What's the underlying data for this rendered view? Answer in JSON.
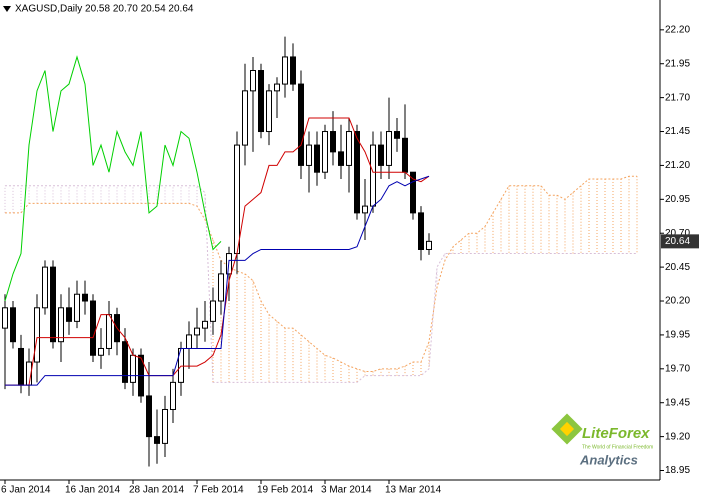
{
  "chart_data": {
    "type": "candlestick",
    "title": "XAGUSD,Daily  20.58 20.70 20.54 20.64",
    "price_label": {
      "value": 20.64,
      "label": "20.64"
    },
    "ylim": [
      18.88,
      22.42
    ],
    "yticks": [
      {
        "value": 22.2,
        "label": "22.20"
      },
      {
        "value": 21.95,
        "label": "21.95"
      },
      {
        "value": 21.7,
        "label": "21.70"
      },
      {
        "value": 21.45,
        "label": "21.45"
      },
      {
        "value": 21.2,
        "label": "21.20"
      },
      {
        "value": 20.95,
        "label": "20.95"
      },
      {
        "value": 20.7,
        "label": "20.70"
      },
      {
        "value": 20.45,
        "label": "20.45"
      },
      {
        "value": 20.2,
        "label": "20.20"
      },
      {
        "value": 19.95,
        "label": "19.95"
      },
      {
        "value": 19.7,
        "label": "19.70"
      },
      {
        "value": 19.45,
        "label": "19.45"
      },
      {
        "value": 19.2,
        "label": "19.20"
      },
      {
        "value": 18.95,
        "label": "18.95"
      }
    ],
    "grid": false,
    "up_color": "#ffffff",
    "down_color": "#000000",
    "categories": [
      "6 Jan 2014",
      null,
      null,
      null,
      null,
      null,
      null,
      null,
      "16 Jan 2014",
      null,
      null,
      null,
      null,
      null,
      null,
      null,
      "28 Jan 2014",
      null,
      null,
      null,
      null,
      null,
      null,
      null,
      "7 Feb 2014",
      null,
      null,
      null,
      null,
      null,
      null,
      null,
      "19 Feb 2014",
      null,
      null,
      null,
      null,
      null,
      null,
      null,
      "3 Mar 2014",
      null,
      null,
      null,
      null,
      null,
      null,
      null,
      "13 Mar 2014",
      null,
      null,
      null,
      null,
      null,
      null,
      null,
      null,
      null,
      null,
      null,
      null,
      null,
      null,
      null,
      null,
      null,
      null,
      null,
      null,
      null,
      null,
      null,
      null,
      null,
      null,
      null,
      null,
      null,
      null,
      null
    ],
    "open": [
      20.0,
      20.15,
      19.85,
      19.58,
      19.75,
      20.15,
      20.45,
      19.9,
      20.15,
      20.05,
      20.25,
      20.2,
      19.8,
      19.85,
      20.1,
      19.9,
      19.6,
      19.8,
      19.5,
      19.2,
      19.15,
      19.4,
      19.6,
      19.85,
      19.95,
      20.0,
      20.05,
      20.2,
      20.4,
      20.55,
      21.35,
      21.75,
      21.9,
      21.45,
      21.75,
      21.8,
      22.0,
      21.8,
      21.2,
      21.35,
      21.15,
      21.45,
      21.3,
      21.2,
      21.45,
      20.85,
      20.9,
      21.35,
      21.2,
      21.45,
      21.4,
      21.15,
      20.85,
      20.58,
      null,
      null,
      null,
      null,
      null,
      null,
      null,
      null,
      null,
      null,
      null,
      null,
      null,
      null,
      null,
      null,
      null,
      null,
      null,
      null,
      null,
      null,
      null,
      null,
      null,
      null
    ],
    "high": [
      20.25,
      20.2,
      19.95,
      19.85,
      20.25,
      20.5,
      20.5,
      20.25,
      20.3,
      20.35,
      20.35,
      20.25,
      20.0,
      20.2,
      20.15,
      20.0,
      19.85,
      19.85,
      19.75,
      19.4,
      19.5,
      19.7,
      19.9,
      20.05,
      20.15,
      20.2,
      20.3,
      20.5,
      20.6,
      21.45,
      21.95,
      22.0,
      21.95,
      21.8,
      21.85,
      22.15,
      22.1,
      21.9,
      21.45,
      21.45,
      21.5,
      21.6,
      21.5,
      21.55,
      21.5,
      21.1,
      21.45,
      21.45,
      21.7,
      21.55,
      21.65,
      21.15,
      20.9,
      20.7,
      null,
      null,
      null,
      null,
      null,
      null,
      null,
      null,
      null,
      null,
      null,
      null,
      null,
      null,
      null,
      null,
      null,
      null,
      null,
      null,
      null,
      null,
      null,
      null,
      null,
      null
    ],
    "low": [
      19.55,
      19.85,
      19.52,
      19.5,
      19.6,
      20.1,
      19.85,
      19.75,
      19.95,
      20.0,
      20.1,
      19.75,
      19.7,
      19.8,
      19.8,
      19.55,
      19.5,
      19.45,
      18.98,
      19.0,
      19.05,
      19.3,
      19.5,
      19.7,
      19.85,
      19.9,
      19.95,
      20.1,
      20.2,
      20.4,
      21.2,
      21.3,
      21.4,
      21.35,
      21.55,
      21.7,
      21.75,
      21.1,
      21.0,
      21.05,
      21.1,
      21.2,
      21.1,
      21.0,
      20.8,
      20.65,
      20.85,
      21.1,
      21.1,
      21.3,
      21.1,
      20.8,
      20.5,
      20.54,
      null,
      null,
      null,
      null,
      null,
      null,
      null,
      null,
      null,
      null,
      null,
      null,
      null,
      null,
      null,
      null,
      null,
      null,
      null,
      null,
      null,
      null,
      null,
      null,
      null,
      null
    ],
    "close": [
      20.15,
      19.9,
      19.58,
      19.75,
      20.15,
      20.45,
      19.9,
      20.15,
      20.05,
      20.25,
      20.2,
      19.8,
      19.85,
      20.1,
      19.9,
      19.6,
      19.8,
      19.5,
      19.2,
      19.15,
      19.4,
      19.6,
      19.85,
      19.95,
      20.0,
      20.05,
      20.2,
      20.4,
      20.55,
      21.35,
      21.75,
      21.9,
      21.45,
      21.75,
      21.8,
      22.0,
      21.8,
      21.2,
      21.35,
      21.15,
      21.45,
      21.3,
      21.2,
      21.45,
      20.85,
      20.9,
      21.35,
      21.2,
      21.45,
      21.4,
      21.15,
      20.85,
      20.58,
      20.64,
      null,
      null,
      null,
      null,
      null,
      null,
      null,
      null,
      null,
      null,
      null,
      null,
      null,
      null,
      null,
      null,
      null,
      null,
      null,
      null,
      null,
      null,
      null,
      null,
      null,
      null
    ],
    "lines": [
      {
        "color": "#d00000",
        "values": [
          19.58,
          19.58,
          19.58,
          19.58,
          19.93,
          19.93,
          19.93,
          19.93,
          19.93,
          19.93,
          19.93,
          19.93,
          20.1,
          20.1,
          20.0,
          19.93,
          19.8,
          19.78,
          19.65,
          19.65,
          19.65,
          19.65,
          19.72,
          19.72,
          19.72,
          19.75,
          19.8,
          19.95,
          20.35,
          20.55,
          20.9,
          20.95,
          21.0,
          21.2,
          21.2,
          21.3,
          21.3,
          21.35,
          21.55,
          21.55,
          21.55,
          21.55,
          21.55,
          21.55,
          21.4,
          21.3,
          21.15,
          21.15,
          21.15,
          21.15,
          21.15,
          21.1,
          21.08,
          21.12,
          null,
          null,
          null,
          null,
          null,
          null,
          null,
          null,
          null,
          null,
          null,
          null,
          null,
          null,
          null,
          null,
          null,
          null,
          null,
          null,
          null,
          null,
          null,
          null,
          null,
          null
        ]
      },
      {
        "color": "#0000b0",
        "values": [
          19.58,
          19.58,
          19.58,
          19.58,
          19.58,
          19.65,
          19.65,
          19.65,
          19.65,
          19.65,
          19.65,
          19.65,
          19.65,
          19.65,
          19.65,
          19.65,
          19.65,
          19.65,
          19.65,
          19.65,
          19.65,
          19.65,
          19.85,
          19.85,
          19.85,
          19.85,
          19.85,
          19.85,
          20.5,
          20.5,
          20.5,
          20.55,
          20.58,
          20.58,
          20.58,
          20.58,
          20.58,
          20.58,
          20.58,
          20.58,
          20.58,
          20.58,
          20.58,
          20.58,
          20.6,
          20.75,
          20.9,
          20.95,
          21.05,
          21.08,
          21.05,
          21.08,
          21.1,
          21.12,
          null,
          null,
          null,
          null,
          null,
          null,
          null,
          null,
          null,
          null,
          null,
          null,
          null,
          null,
          null,
          null,
          null,
          null,
          null,
          null,
          null,
          null,
          null,
          null,
          null,
          null
        ]
      },
      {
        "color": "#00d000",
        "values": [
          20.2,
          20.4,
          20.55,
          21.35,
          21.75,
          21.9,
          21.45,
          21.75,
          21.8,
          22.0,
          21.8,
          21.2,
          21.35,
          21.15,
          21.45,
          21.3,
          21.2,
          21.45,
          20.85,
          20.9,
          21.35,
          21.2,
          21.45,
          21.4,
          21.15,
          20.85,
          20.58,
          20.64,
          null,
          null,
          null,
          null,
          null,
          null,
          null,
          null,
          null,
          null,
          null,
          null,
          null,
          null,
          null,
          null,
          null,
          null,
          null,
          null,
          null,
          null,
          null,
          null,
          null,
          null,
          null,
          null,
          null,
          null,
          null,
          null,
          null,
          null,
          null,
          null,
          null,
          null,
          null,
          null,
          null,
          null,
          null,
          null,
          null,
          null,
          null,
          null,
          null,
          null,
          null,
          null
        ]
      }
    ],
    "cloud": {
      "up_color": "#f4a460",
      "down_color": "#d8bfd8",
      "span_a": [
        20.85,
        20.85,
        20.85,
        20.92,
        20.92,
        20.92,
        20.92,
        20.92,
        20.92,
        20.92,
        20.92,
        20.92,
        20.92,
        20.92,
        20.92,
        20.92,
        20.92,
        20.92,
        20.92,
        20.92,
        20.92,
        20.92,
        20.92,
        20.92,
        20.9,
        20.8,
        20.65,
        20.5,
        20.45,
        20.42,
        20.4,
        20.35,
        20.2,
        20.1,
        20.05,
        20.0,
        20.0,
        19.95,
        19.9,
        19.85,
        19.8,
        19.78,
        19.75,
        19.72,
        19.7,
        19.68,
        19.68,
        19.7,
        19.7,
        19.7,
        19.72,
        19.75,
        19.75,
        19.9,
        20.3,
        20.5,
        20.6,
        20.65,
        20.7,
        20.7,
        20.75,
        20.85,
        20.95,
        21.05,
        21.05,
        21.05,
        21.05,
        21.05,
        20.98,
        20.98,
        20.95,
        21.0,
        21.05,
        21.1,
        21.1,
        21.1,
        21.1,
        21.1,
        21.12,
        21.12
      ],
      "span_b": [
        21.05,
        21.05,
        21.05,
        21.05,
        21.05,
        21.05,
        21.05,
        21.05,
        21.05,
        21.05,
        21.05,
        21.05,
        21.05,
        21.05,
        21.05,
        21.05,
        21.05,
        21.05,
        21.05,
        21.05,
        21.05,
        21.05,
        21.05,
        21.05,
        21.05,
        21.0,
        19.6,
        19.6,
        19.6,
        19.6,
        19.6,
        19.6,
        19.6,
        19.6,
        19.6,
        19.6,
        19.6,
        19.6,
        19.6,
        19.6,
        19.6,
        19.6,
        19.6,
        19.6,
        19.6,
        19.65,
        19.65,
        19.65,
        19.65,
        19.65,
        19.65,
        19.65,
        19.65,
        19.7,
        20.45,
        20.55,
        20.55,
        20.55,
        20.55,
        20.55,
        20.55,
        20.55,
        20.55,
        20.55,
        20.55,
        20.55,
        20.55,
        20.55,
        20.55,
        20.55,
        20.55,
        20.55,
        20.55,
        20.55,
        20.55,
        20.55,
        20.55,
        20.55,
        20.55,
        20.55
      ]
    },
    "watermark": {
      "brand": "LiteForex",
      "tagline": "The World of Financial Freedom",
      "product": "Analytics"
    }
  }
}
